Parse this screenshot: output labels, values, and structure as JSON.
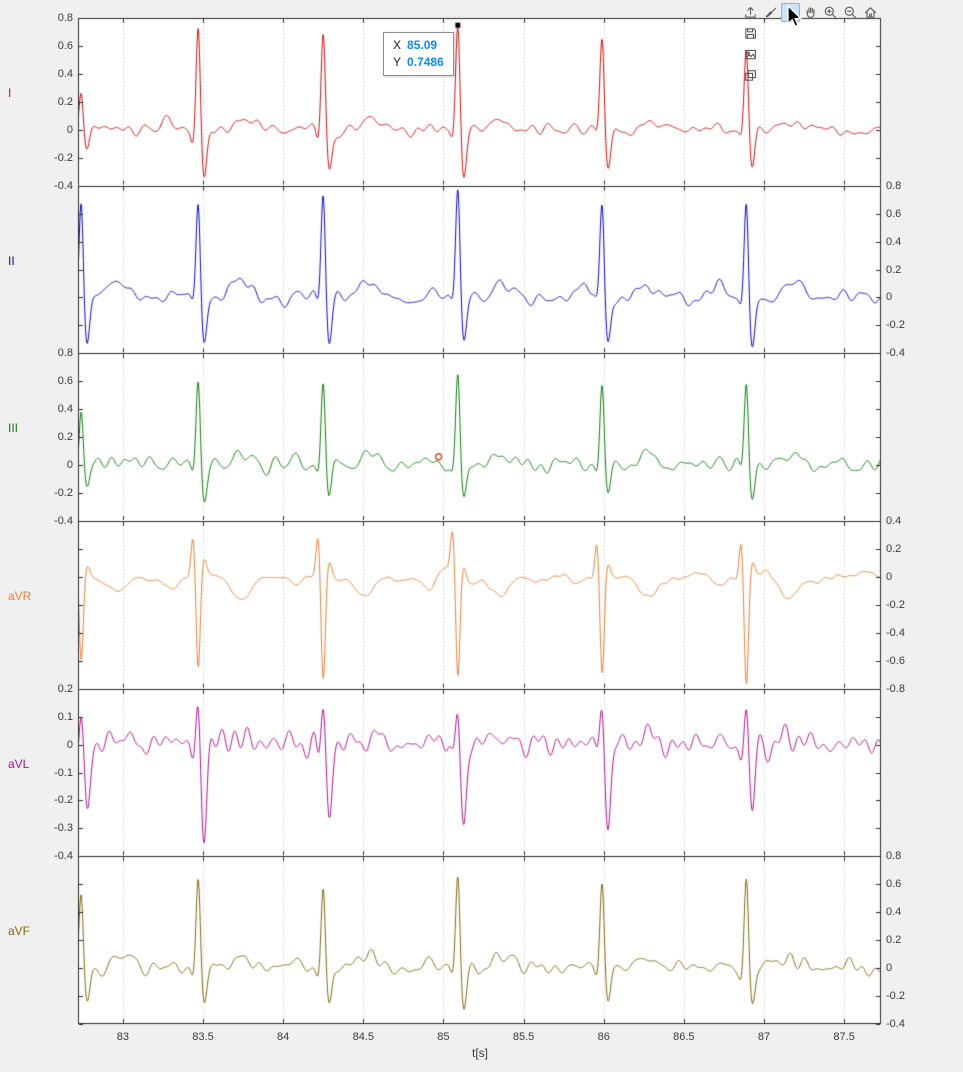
{
  "figure": {
    "background": "#f0f0f0",
    "axes_background": "#ffffff",
    "axis_color": "#2b2b2b",
    "grid_color": "#c9c9c9",
    "tick_label_color": "#3a3a3a"
  },
  "toolbar": {
    "icons": [
      "export",
      "brush",
      "datatips",
      "pan",
      "zoom-in",
      "zoom-out",
      "restore-view"
    ],
    "active_icon": "datatips",
    "menu_icons": [
      "save-figure",
      "copy-as-image",
      "copy-as-vector"
    ]
  },
  "datatip": {
    "x_label": "X",
    "x_value": "85.09",
    "y_label": "Y",
    "y_value": "0.7486",
    "value_color": "#0b8af0"
  },
  "chart_data": {
    "type": "line",
    "title": "",
    "xlabel": "t[s]",
    "xlim": [
      82.72,
      87.73
    ],
    "xticks": [
      83,
      83.5,
      84,
      84.5,
      85,
      85.5,
      86,
      86.5,
      87,
      87.5
    ],
    "xtick_labels": [
      "83",
      "83.5",
      "84",
      "84.5",
      "85",
      "85.5",
      "86",
      "86.5",
      "87",
      "87.5"
    ],
    "grid": "vertical-dotted",
    "beat_times_s": [
      82.74,
      83.47,
      84.25,
      85.09,
      85.99,
      86.89
    ],
    "panels": [
      {
        "lead": "I",
        "color": "#cc1111",
        "ylim": [
          -0.4,
          0.8
        ],
        "ytick_values": [
          0.8,
          0.6,
          0.4,
          0.2,
          0,
          -0.2,
          -0.4
        ],
        "ytick_labels": [
          "0.8",
          "0.6",
          "0.4",
          "0.2",
          "0",
          "-0.2",
          "-0.4"
        ],
        "tick_label_side": "left",
        "wave": {
          "r_amp": 0.78,
          "q_amp": -0.08,
          "s_amp": -0.36,
          "p_amp": 0.04,
          "t_amp": 0.07,
          "noise_amp": 0.045,
          "noise_character": "mixed",
          "beat_scale": [
            0.4,
            1.0,
            0.9,
            0.96,
            0.8,
            0.78
          ],
          "seed": 11
        }
      },
      {
        "lead": "II",
        "color": "#0a0ac0",
        "ylim": [
          -0.4,
          0.8
        ],
        "ytick_values": [
          0.8,
          0.6,
          0.4,
          0.2,
          0,
          -0.2,
          -0.4
        ],
        "ytick_labels": [
          "0.8",
          "0.6",
          "0.4",
          "0.2",
          "0",
          "-0.2",
          "-0.4"
        ],
        "tick_label_side": "right",
        "wave": {
          "r_amp": 0.74,
          "q_amp": -0.07,
          "s_amp": -0.34,
          "p_amp": 0.05,
          "t_amp": 0.1,
          "noise_amp": 0.045,
          "noise_character": "mixed",
          "beat_scale": [
            1.0,
            0.95,
            1.0,
            1.0,
            0.93,
            0.97
          ],
          "seed": 23
        }
      },
      {
        "lead": "III",
        "color": "#0e7d0e",
        "ylim": [
          -0.4,
          0.8
        ],
        "ytick_values": [
          0.8,
          0.6,
          0.4,
          0.2,
          0,
          -0.2,
          -0.4
        ],
        "ytick_labels": [
          "0.8",
          "0.6",
          "0.4",
          "0.2",
          "0",
          "-0.2",
          "-0.4"
        ],
        "tick_label_side": "left",
        "wave": {
          "r_amp": 0.66,
          "q_amp": -0.06,
          "s_amp": -0.26,
          "p_amp": 0.04,
          "t_amp": 0.07,
          "noise_amp": 0.045,
          "noise_character": "mixed",
          "beat_scale": [
            0.7,
            0.95,
            0.97,
            1.0,
            0.9,
            0.95
          ],
          "seed": 37
        }
      },
      {
        "lead": "aVR",
        "color": "#e8813a",
        "ylim": [
          -0.8,
          0.4
        ],
        "ytick_values": [
          0.4,
          0.2,
          0,
          -0.2,
          -0.4,
          -0.6,
          -0.8
        ],
        "ytick_labels": [
          "0.4",
          "0.2",
          "0",
          "-0.2",
          "-0.4",
          "-0.6",
          "-0.8"
        ],
        "tick_label_side": "right",
        "wave": {
          "r_amp": -0.74,
          "q_amp": 0.3,
          "s_amp": 0.12,
          "p_amp": -0.07,
          "t_amp": -0.15,
          "noise_amp": 0.04,
          "noise_character": "lf",
          "beat_scale": [
            0.8,
            0.95,
            1.0,
            1.0,
            0.95,
            1.0
          ],
          "seed": 53
        }
      },
      {
        "lead": "aVL",
        "color": "#b0148e",
        "ylim": [
          -0.4,
          0.2
        ],
        "ytick_values": [
          0.2,
          0.1,
          0,
          -0.1,
          -0.2,
          -0.3,
          -0.4
        ],
        "ytick_labels": [
          "0.2",
          "0.1",
          "0",
          "-0.1",
          "-0.2",
          "-0.3",
          "-0.4"
        ],
        "tick_label_side": "left",
        "wave": {
          "r_amp": 0.17,
          "q_amp": -0.05,
          "s_amp": -0.31,
          "p_amp": 0.02,
          "t_amp": 0.03,
          "noise_amp": 0.042,
          "noise_character": "hf",
          "beat_scale": [
            0.75,
            1.0,
            0.85,
            0.95,
            0.9,
            0.85
          ],
          "seed": 67
        }
      },
      {
        "lead": "aVF",
        "color": "#7e6a10",
        "ylim": [
          -0.4,
          0.8
        ],
        "ytick_values": [
          0.8,
          0.6,
          0.4,
          0.2,
          0,
          -0.2,
          -0.4
        ],
        "ytick_labels": [
          "0.8",
          "0.6",
          "0.4",
          "0.2",
          "0",
          "-0.2",
          "-0.4"
        ],
        "tick_label_side": "right",
        "wave": {
          "r_amp": 0.66,
          "q_amp": -0.06,
          "s_amp": -0.28,
          "p_amp": 0.04,
          "t_amp": 0.09,
          "noise_amp": 0.045,
          "noise_character": "mixed",
          "beat_scale": [
            0.8,
            0.95,
            0.95,
            1.0,
            0.95,
            0.98
          ],
          "seed": 83
        }
      }
    ],
    "markers": [
      {
        "panel": 0,
        "x": 85.09,
        "y": 0.7486,
        "shape": "square",
        "color": "#000000"
      },
      {
        "panel": 2,
        "x": 84.97,
        "y": 0.06,
        "shape": "open-circle",
        "color": "#d4502a"
      }
    ]
  }
}
